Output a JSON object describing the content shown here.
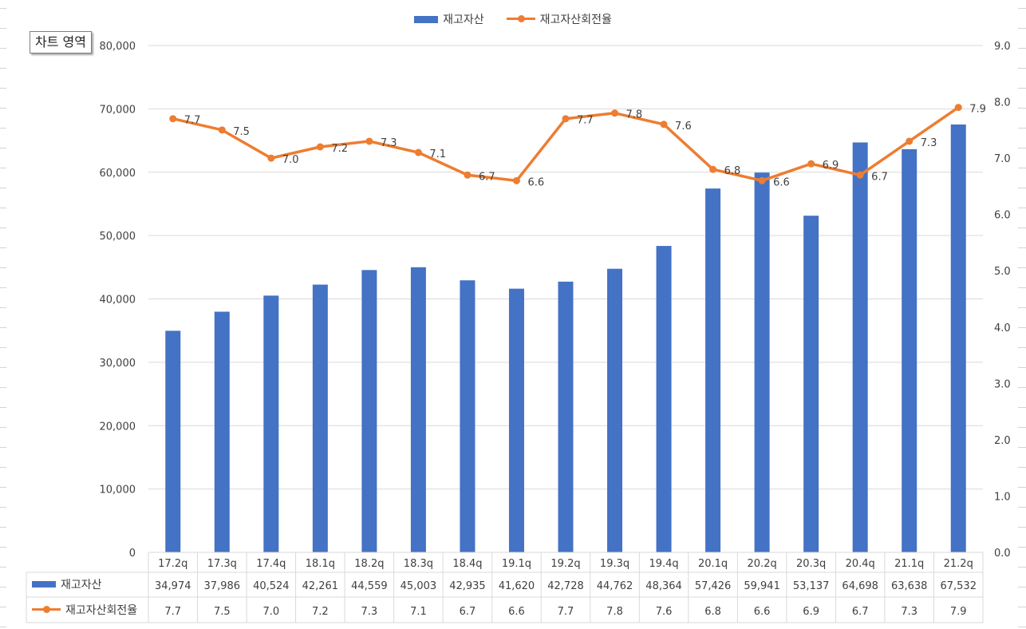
{
  "tooltip": "차트 영역",
  "colors": {
    "bar": "#4472C4",
    "line": "#ED7D31",
    "grid": "#D9D9D9",
    "text": "#404040"
  },
  "legend_position": "top",
  "chart_data": {
    "type": "bar+line",
    "categories": [
      "17.2q",
      "17.3q",
      "17.4q",
      "18.1q",
      "18.2q",
      "18.3q",
      "18.4q",
      "19.1q",
      "19.2q",
      "19.3q",
      "19.4q",
      "20.1q",
      "20.2q",
      "20.3q",
      "20.4q",
      "21.1q",
      "21.2q"
    ],
    "series": [
      {
        "name": "재고자산",
        "type": "bar",
        "axis": "left",
        "values": [
          34974,
          37986,
          40524,
          42261,
          44559,
          45003,
          42935,
          41620,
          42728,
          44762,
          48364,
          57426,
          59941,
          53137,
          64698,
          63638,
          67532
        ],
        "labels": [
          "34,974",
          "37,986",
          "40,524",
          "42,261",
          "44,559",
          "45,003",
          "42,935",
          "41,620",
          "42,728",
          "44,762",
          "48,364",
          "57,426",
          "59,941",
          "53,137",
          "64,698",
          "63,638",
          "67,532"
        ]
      },
      {
        "name": "재고자산회전율",
        "type": "line",
        "axis": "right",
        "values": [
          7.7,
          7.5,
          7.0,
          7.2,
          7.3,
          7.1,
          6.7,
          6.6,
          7.7,
          7.8,
          7.6,
          6.8,
          6.6,
          6.9,
          6.7,
          7.3,
          7.9
        ],
        "labels": [
          "7.7",
          "7.5",
          "7.0",
          "7.2",
          "7.3",
          "7.1",
          "6.7",
          "6.6",
          "7.7",
          "7.8",
          "7.6",
          "6.8",
          "6.6",
          "6.9",
          "6.7",
          "7.3",
          "7.9"
        ]
      }
    ],
    "y_left": {
      "min": 0,
      "max": 80000,
      "ticks": [
        "0",
        "10,000",
        "20,000",
        "30,000",
        "40,000",
        "50,000",
        "60,000",
        "70,000",
        "80,000"
      ]
    },
    "y_right": {
      "min": 0,
      "max": 9,
      "ticks": [
        "0.0",
        "1.0",
        "2.0",
        "3.0",
        "4.0",
        "5.0",
        "6.0",
        "7.0",
        "8.0",
        "9.0"
      ]
    },
    "grid": true,
    "data_table": true
  }
}
